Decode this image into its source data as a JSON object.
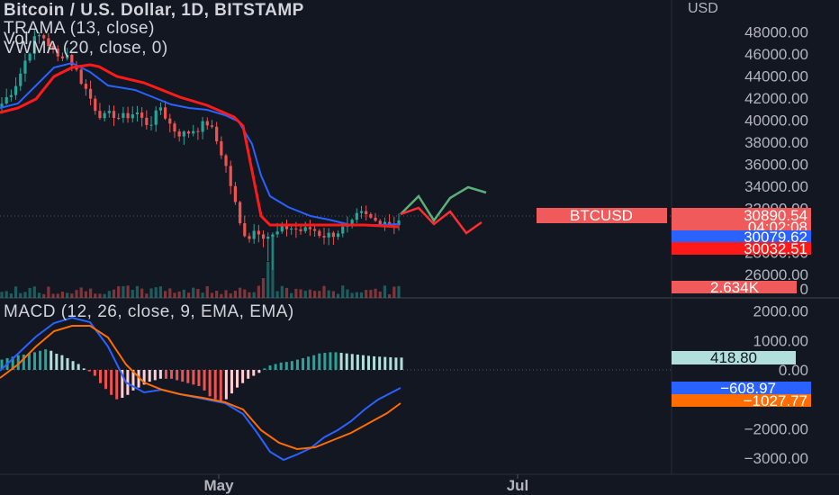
{
  "header": {
    "title": "Bitcoin / U.S. Dollar, 1D, BITSTAMP",
    "indicator1": "TRAMA (13, close)",
    "indicator2": "Vol",
    "indicator3": "VWMA (20, close, 0)",
    "macd_title": "MACD (12, 26, close, 9, EMA, EMA)",
    "currency": "USD"
  },
  "colors": {
    "background": "#131722",
    "up": "#26a69a",
    "down": "#ef5350",
    "trama": "#ff1a1a",
    "vwma": "#2962ff",
    "macd": "#2962ff",
    "signal": "#ff6d00",
    "axis_text": "#b2b5be",
    "drawing_green": "#5bb07a",
    "drawing_red": "#ff2d2d"
  },
  "price_axis": {
    "ticks": [
      "48000.00",
      "46000.00",
      "44000.00",
      "42000.00",
      "40000.00",
      "38000.00",
      "36000.00",
      "34000.00",
      "32000.00",
      "28000.00",
      "26000.00"
    ],
    "labels": [
      {
        "text": "BTCUSD",
        "color": "#f05a5a"
      },
      {
        "text": "30890.54",
        "color": "#f05a5a"
      },
      {
        "text": "04:02:08",
        "color": "#f05a5a"
      },
      {
        "text": "30079.62",
        "color": "#2962ff"
      },
      {
        "text": "30032.51",
        "color": "#ff1a1a"
      },
      {
        "text": "2.634K",
        "color": "#f05a5a"
      },
      {
        "text": "0",
        "color": "#b2b5be"
      }
    ]
  },
  "macd_axis": {
    "ticks": [
      "2000.00",
      "1000.00",
      "0.00",
      "−2000.00",
      "−3000.00"
    ],
    "labels": [
      {
        "text": "418.80",
        "color": "#b2dfdb"
      },
      {
        "text": "−608.97",
        "color": "#2962ff"
      },
      {
        "text": "−1027.77",
        "color": "#ff6d00"
      }
    ]
  },
  "time_axis": {
    "labels": [
      "May",
      "Jul"
    ]
  },
  "chart_data": [
    {
      "type": "candlestick",
      "title": "Bitcoin / U.S. Dollar, 1D, BITSTAMP",
      "ylim": [
        24500,
        49500
      ],
      "last_price": 30890.54,
      "series": [
        {
          "name": "TRAMA (13, close)",
          "last": 30032.51
        },
        {
          "name": "VWMA (20, close, 0)",
          "last": 30079.62
        }
      ],
      "volume_last": "2.634K",
      "approx_close_path": [
        41500,
        42400,
        43600,
        45500,
        47200,
        47800,
        46800,
        45600,
        46200,
        45000,
        43600,
        42200,
        40800,
        40200,
        40600,
        40100,
        40500,
        40700,
        39700,
        39900,
        41200,
        39800,
        38900,
        38700,
        39100,
        39400,
        39800,
        38200,
        36400,
        33600,
        30500,
        29300,
        30200,
        29600,
        29400,
        29900,
        30300,
        30100,
        29900,
        30200,
        29700,
        29500,
        29800,
        30100,
        30400,
        31500,
        31200,
        30800,
        31000,
        30600,
        30890
      ]
    },
    {
      "type": "macd",
      "title": "MACD (12, 26, close, 9, EMA, EMA)",
      "ylim": [
        -3200,
        2200
      ],
      "series": [
        {
          "name": "Histogram",
          "last": 418.8
        },
        {
          "name": "MACD",
          "last": -608.97
        },
        {
          "name": "Signal",
          "last": -1027.77
        }
      ]
    }
  ]
}
